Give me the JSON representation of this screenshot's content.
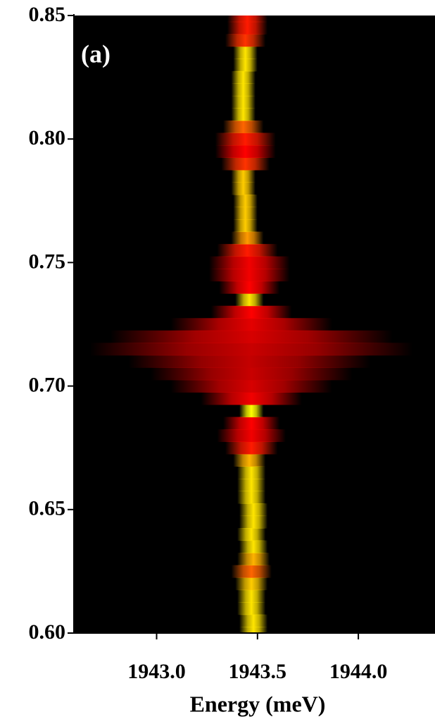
{
  "chart_data": {
    "type": "heatmap",
    "annotation": "(a)",
    "xlabel": "Energy (meV)",
    "xlim": [
      1942.59,
      1944.38
    ],
    "ylim": [
      0.6,
      0.85
    ],
    "xticks": [
      {
        "value": 1943.0,
        "label": "1943.0"
      },
      1943.5,
      {
        "value": 1944.0,
        "label": "1944.0"
      }
    ],
    "yticks": [
      {
        "value": 0.6,
        "label": "0.60"
      },
      0.65,
      {
        "value": 0.7,
        "label": "0.70"
      },
      0.75,
      {
        "value": 0.8,
        "label": "0.80"
      },
      0.85
    ],
    "y": [
      0.6,
      0.605,
      0.61,
      0.615,
      0.62,
      0.625,
      0.63,
      0.635,
      0.64,
      0.645,
      0.65,
      0.655,
      0.66,
      0.665,
      0.67,
      0.675,
      0.68,
      0.685,
      0.69,
      0.695,
      0.7,
      0.705,
      0.71,
      0.715,
      0.72,
      0.725,
      0.73,
      0.735,
      0.74,
      0.745,
      0.75,
      0.755,
      0.76,
      0.765,
      0.77,
      0.775,
      0.78,
      0.785,
      0.79,
      0.795,
      0.8,
      0.805,
      0.81,
      0.815,
      0.82,
      0.825,
      0.83,
      0.835,
      0.84,
      0.845,
      0.85
    ],
    "center": [
      1943.48,
      1943.48,
      1943.47,
      1943.47,
      1943.47,
      1943.47,
      1943.48,
      1943.48,
      1943.47,
      1943.48,
      1943.48,
      1943.47,
      1943.47,
      1943.47,
      1943.46,
      1943.47,
      1943.47,
      1943.47,
      1943.47,
      1943.47,
      1943.47,
      1943.47,
      1943.46,
      1943.47,
      1943.47,
      1943.47,
      1943.47,
      1943.46,
      1943.46,
      1943.46,
      1943.46,
      1943.45,
      1943.45,
      1943.44,
      1943.44,
      1943.44,
      1943.43,
      1943.43,
      1943.44,
      1943.44,
      1943.44,
      1943.43,
      1943.43,
      1943.43,
      1943.43,
      1943.43,
      1943.44,
      1943.44,
      1943.44,
      1943.45,
      1943.45
    ],
    "width": [
      0.07,
      0.07,
      0.07,
      0.07,
      0.08,
      0.1,
      0.08,
      0.07,
      0.07,
      0.07,
      0.07,
      0.07,
      0.07,
      0.07,
      0.08,
      0.13,
      0.17,
      0.14,
      0.06,
      0.25,
      0.4,
      0.5,
      0.6,
      0.8,
      0.7,
      0.4,
      0.2,
      0.07,
      0.15,
      0.2,
      0.2,
      0.15,
      0.08,
      0.06,
      0.06,
      0.06,
      0.06,
      0.06,
      0.12,
      0.15,
      0.15,
      0.1,
      0.06,
      0.06,
      0.06,
      0.06,
      0.06,
      0.06,
      0.1,
      0.1,
      0.1
    ],
    "intensity": [
      0.95,
      0.95,
      0.95,
      0.95,
      0.9,
      0.7,
      0.85,
      0.95,
      0.95,
      0.95,
      0.95,
      0.95,
      0.95,
      0.95,
      0.85,
      0.55,
      0.45,
      0.5,
      1,
      0.45,
      0.35,
      0.3,
      0.28,
      0.3,
      0.35,
      0.4,
      0.5,
      0.95,
      0.5,
      0.45,
      0.45,
      0.55,
      0.8,
      0.9,
      0.9,
      0.9,
      0.9,
      0.9,
      0.6,
      0.5,
      0.55,
      0.7,
      0.95,
      0.95,
      0.95,
      0.95,
      0.95,
      0.95,
      0.6,
      0.55,
      0.55
    ]
  }
}
